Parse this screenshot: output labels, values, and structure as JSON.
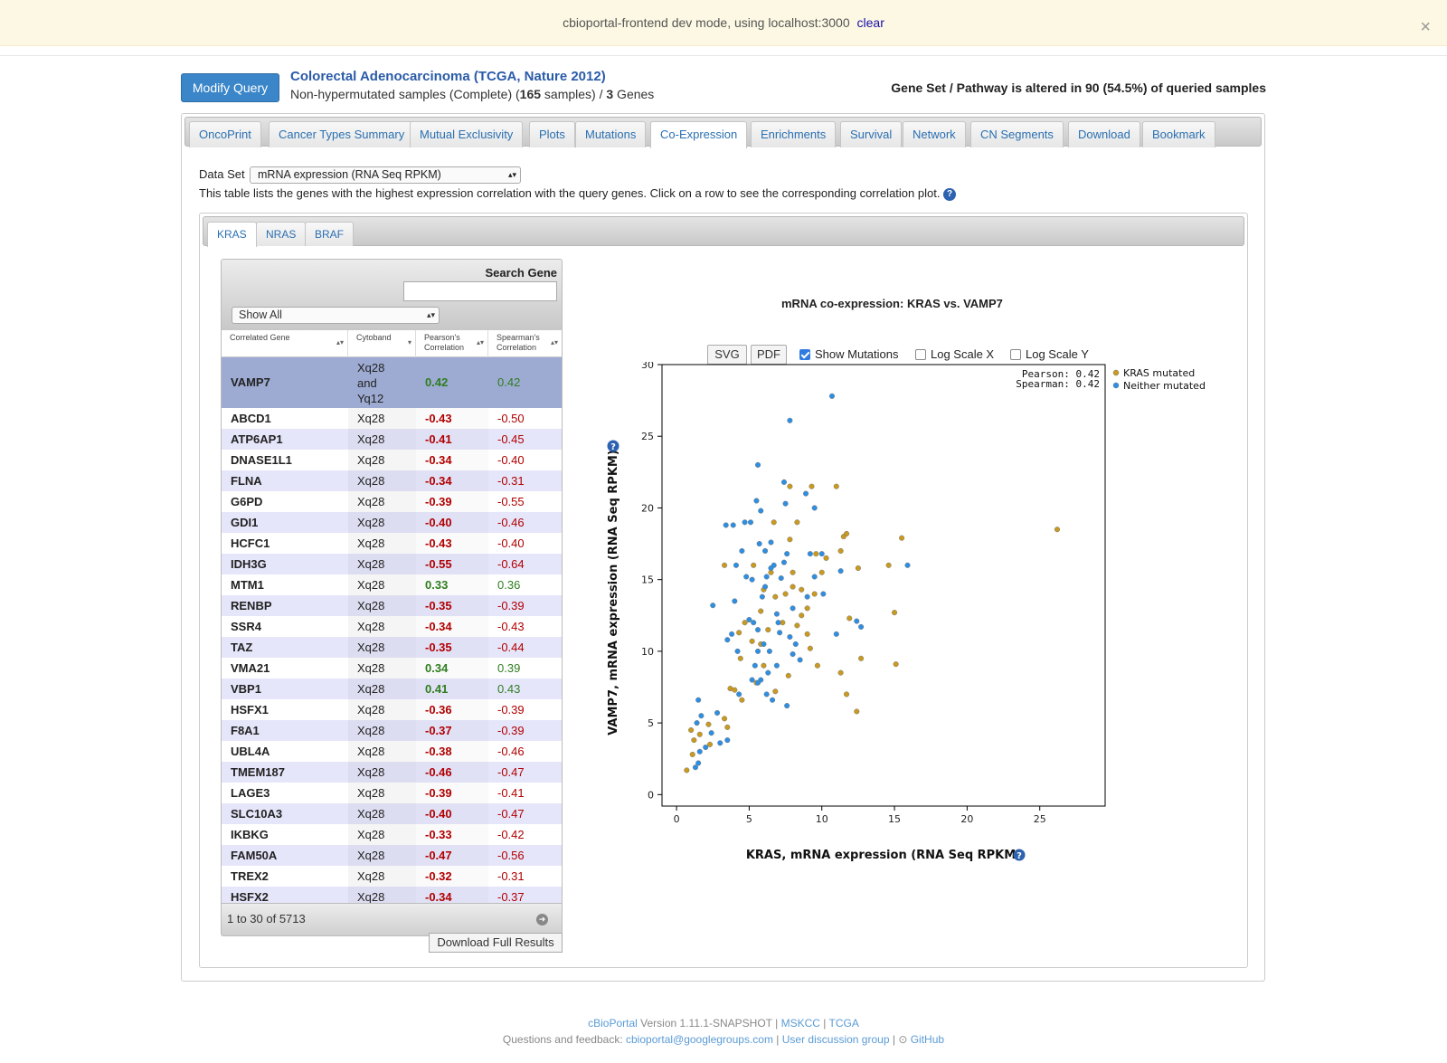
{
  "devbar": {
    "message": "cbioportal-frontend dev mode, using localhost:3000",
    "clear_label": "clear",
    "close": "×"
  },
  "header": {
    "modify_label": "Modify Query",
    "study_title": "Colorectal Adenocarcinoma (TCGA, Nature 2012)",
    "subtitle_pre": "Non-hypermutated samples (Complete) (",
    "samples_count": "165",
    "subtitle_mid": " samples) / ",
    "genes_count": "3",
    "subtitle_post": " Genes",
    "altered_text": "Gene Set / Pathway is altered in 90 (54.5%) of queried samples"
  },
  "tabs": [
    "OncoPrint",
    "Cancer Types Summary",
    "Mutual Exclusivity",
    "Plots",
    "Mutations",
    "Co-Expression",
    "Enrichments",
    "Survival",
    "Network",
    "CN Segments",
    "Download",
    "Bookmark"
  ],
  "active_tab": "Co-Expression",
  "dataset": {
    "label": "Data Set",
    "selected": "mRNA expression (RNA Seq RPKM)",
    "description": "This table lists the genes with the highest expression correlation with the query genes. Click on a row to see the corresponding correlation plot."
  },
  "gene_tabs": [
    "KRAS",
    "NRAS",
    "BRAF"
  ],
  "active_gene_tab": "KRAS",
  "table": {
    "search_label": "Search Gene",
    "search_value": "",
    "filter_selected": "Show All",
    "columns": [
      {
        "line1": "Correlated Gene",
        "line2": ""
      },
      {
        "line1": "Cytoband",
        "line2": ""
      },
      {
        "line1": "Pearson's",
        "line2": "Correlation"
      },
      {
        "line1": "Spearman's",
        "line2": "Correlation"
      }
    ],
    "selected_row": {
      "gene": "VAMP7",
      "cytoband": [
        "Xq28",
        "and",
        "Yq12"
      ],
      "pearson": "0.42",
      "spearman": "0.42"
    },
    "rows": [
      {
        "gene": "ABCD1",
        "cytoband": "Xq28",
        "pearson": "-0.43",
        "spearman": "-0.50"
      },
      {
        "gene": "ATP6AP1",
        "cytoband": "Xq28",
        "pearson": "-0.41",
        "spearman": "-0.45"
      },
      {
        "gene": "DNASE1L1",
        "cytoband": "Xq28",
        "pearson": "-0.34",
        "spearman": "-0.40"
      },
      {
        "gene": "FLNA",
        "cytoband": "Xq28",
        "pearson": "-0.34",
        "spearman": "-0.31"
      },
      {
        "gene": "G6PD",
        "cytoband": "Xq28",
        "pearson": "-0.39",
        "spearman": "-0.55"
      },
      {
        "gene": "GDI1",
        "cytoband": "Xq28",
        "pearson": "-0.40",
        "spearman": "-0.46"
      },
      {
        "gene": "HCFC1",
        "cytoband": "Xq28",
        "pearson": "-0.43",
        "spearman": "-0.40"
      },
      {
        "gene": "IDH3G",
        "cytoband": "Xq28",
        "pearson": "-0.55",
        "spearman": "-0.64"
      },
      {
        "gene": "MTM1",
        "cytoband": "Xq28",
        "pearson": "0.33",
        "spearman": "0.36"
      },
      {
        "gene": "RENBP",
        "cytoband": "Xq28",
        "pearson": "-0.35",
        "spearman": "-0.39"
      },
      {
        "gene": "SSR4",
        "cytoband": "Xq28",
        "pearson": "-0.34",
        "spearman": "-0.43"
      },
      {
        "gene": "TAZ",
        "cytoband": "Xq28",
        "pearson": "-0.35",
        "spearman": "-0.44"
      },
      {
        "gene": "VMA21",
        "cytoband": "Xq28",
        "pearson": "0.34",
        "spearman": "0.39"
      },
      {
        "gene": "VBP1",
        "cytoband": "Xq28",
        "pearson": "0.41",
        "spearman": "0.43"
      },
      {
        "gene": "HSFX1",
        "cytoband": "Xq28",
        "pearson": "-0.36",
        "spearman": "-0.39"
      },
      {
        "gene": "F8A1",
        "cytoband": "Xq28",
        "pearson": "-0.37",
        "spearman": "-0.39"
      },
      {
        "gene": "UBL4A",
        "cytoband": "Xq28",
        "pearson": "-0.38",
        "spearman": "-0.46"
      },
      {
        "gene": "TMEM187",
        "cytoband": "Xq28",
        "pearson": "-0.46",
        "spearman": "-0.47"
      },
      {
        "gene": "LAGE3",
        "cytoband": "Xq28",
        "pearson": "-0.39",
        "spearman": "-0.41"
      },
      {
        "gene": "SLC10A3",
        "cytoband": "Xq28",
        "pearson": "-0.40",
        "spearman": "-0.47"
      },
      {
        "gene": "IKBKG",
        "cytoband": "Xq28",
        "pearson": "-0.33",
        "spearman": "-0.42"
      },
      {
        "gene": "FAM50A",
        "cytoband": "Xq28",
        "pearson": "-0.47",
        "spearman": "-0.56"
      },
      {
        "gene": "TREX2",
        "cytoband": "Xq28",
        "pearson": "-0.32",
        "spearman": "-0.31"
      },
      {
        "gene": "HSFX2",
        "cytoband": "Xq28",
        "pearson": "-0.34",
        "spearman": "-0.37"
      }
    ],
    "pagination": "1 to 30 of 5713",
    "download_label": "Download Full Results"
  },
  "plot_controls": {
    "svg_label": "SVG",
    "pdf_label": "PDF",
    "show_mutations_label": "Show Mutations",
    "show_mutations": true,
    "log_x_label": "Log Scale X",
    "log_x": false,
    "log_y_label": "Log Scale Y",
    "log_y": false
  },
  "colors": {
    "mutated": "#c99a1e",
    "neither": "#2d8fe3",
    "negative": "#b10000",
    "positive": "#2f7d1f",
    "link": "#2a6fb0"
  },
  "chart_data": {
    "type": "scatter",
    "title": "mRNA co-expression: KRAS vs. VAMP7",
    "xlabel": "KRAS, mRNA expression (RNA Seq RPKM)",
    "ylabel": "VAMP7, mRNA expression (RNA Seq RPKM)",
    "xlim": [
      -1,
      29.5
    ],
    "ylim": [
      -0.8,
      30
    ],
    "xticks": [
      0,
      5,
      10,
      15,
      20,
      25
    ],
    "yticks": [
      0,
      5,
      10,
      15,
      20,
      25,
      30
    ],
    "grid": false,
    "legend_position": "right",
    "stats": [
      "Pearson: 0.42",
      "Spearman: 0.42"
    ],
    "series": [
      {
        "name": "KRAS mutated",
        "color": "#c99a1e",
        "points": [
          [
            0.7,
            1.7
          ],
          [
            1.1,
            2.8
          ],
          [
            1.2,
            3.8
          ],
          [
            1.0,
            4.5
          ],
          [
            1.6,
            4.2
          ],
          [
            2.2,
            4.9
          ],
          [
            2.3,
            3.5
          ],
          [
            3.3,
            5.3
          ],
          [
            3.5,
            4.7
          ],
          [
            3.3,
            16.0
          ],
          [
            3.7,
            7.4
          ],
          [
            4.0,
            7.3
          ],
          [
            4.5,
            6.6
          ],
          [
            4.3,
            11.3
          ],
          [
            4.4,
            9.5
          ],
          [
            4.7,
            12.0
          ],
          [
            5.2,
            10.7
          ],
          [
            5.3,
            16.0
          ],
          [
            5.8,
            10.5
          ],
          [
            5.8,
            12.8
          ],
          [
            6.0,
            14.3
          ],
          [
            6.3,
            11.5
          ],
          [
            6.7,
            19.0
          ],
          [
            6.5,
            15.5
          ],
          [
            6.8,
            13.8
          ],
          [
            7.5,
            14.0
          ],
          [
            7.3,
            12.0
          ],
          [
            7.8,
            21.5
          ],
          [
            7.8,
            17.8
          ],
          [
            8.3,
            19.0
          ],
          [
            8.0,
            15.5
          ],
          [
            8.0,
            14.5
          ],
          [
            8.3,
            11.8
          ],
          [
            8.6,
            12.5
          ],
          [
            9.0,
            13.0
          ],
          [
            9.0,
            11.2
          ],
          [
            9.3,
            21.5
          ],
          [
            9.2,
            10.2
          ],
          [
            9.6,
            16.8
          ],
          [
            9.5,
            14.0
          ],
          [
            9.7,
            9.0
          ],
          [
            10.0,
            15.5
          ],
          [
            10.3,
            16.5
          ],
          [
            11.0,
            21.5
          ],
          [
            11.3,
            17.0
          ],
          [
            11.5,
            18.0
          ],
          [
            11.7,
            18.2
          ],
          [
            11.9,
            12.3
          ],
          [
            11.3,
            8.5
          ],
          [
            11.7,
            7.0
          ],
          [
            12.5,
            15.8
          ],
          [
            12.4,
            5.8
          ],
          [
            12.7,
            9.5
          ],
          [
            14.6,
            16.0
          ],
          [
            15.0,
            12.7
          ],
          [
            15.1,
            9.1
          ],
          [
            15.5,
            17.9
          ],
          [
            26.2,
            18.5
          ],
          [
            6.0,
            9.0
          ],
          [
            5.5,
            7.8
          ],
          [
            6.8,
            7.2
          ],
          [
            7.7,
            8.3
          ],
          [
            8.6,
            14.3
          ]
        ]
      },
      {
        "name": "Neither mutated",
        "color": "#2d8fe3",
        "points": [
          [
            1.3,
            1.9
          ],
          [
            1.5,
            2.2
          ],
          [
            1.6,
            3.0
          ],
          [
            1.4,
            5.0
          ],
          [
            1.7,
            5.5
          ],
          [
            2.0,
            3.3
          ],
          [
            2.4,
            4.3
          ],
          [
            2.8,
            5.7
          ],
          [
            3.0,
            3.6
          ],
          [
            3.5,
            3.8
          ],
          [
            1.5,
            6.6
          ],
          [
            2.5,
            13.2
          ],
          [
            3.5,
            10.8
          ],
          [
            3.8,
            11.2
          ],
          [
            4.0,
            13.5
          ],
          [
            3.9,
            18.8
          ],
          [
            4.1,
            16.0
          ],
          [
            4.7,
            19.0
          ],
          [
            5.1,
            19.0
          ],
          [
            5.6,
            23.0
          ],
          [
            5.5,
            20.5
          ],
          [
            5.8,
            19.8
          ],
          [
            5.7,
            17.5
          ],
          [
            6.1,
            17.0
          ],
          [
            6.5,
            17.6
          ],
          [
            4.8,
            15.2
          ],
          [
            5.2,
            15.0
          ],
          [
            5.0,
            12.2
          ],
          [
            5.3,
            12.0
          ],
          [
            5.6,
            11.5
          ],
          [
            5.6,
            10.0
          ],
          [
            5.4,
            9.0
          ],
          [
            5.2,
            8.0
          ],
          [
            5.6,
            7.8
          ],
          [
            5.8,
            8.0
          ],
          [
            6.3,
            8.5
          ],
          [
            6.1,
            14.5
          ],
          [
            6.2,
            15.2
          ],
          [
            6.5,
            15.8
          ],
          [
            6.7,
            16.0
          ],
          [
            6.9,
            12.6
          ],
          [
            7.0,
            12.0
          ],
          [
            7.2,
            15.1
          ],
          [
            7.4,
            16.2
          ],
          [
            7.6,
            16.8
          ],
          [
            7.4,
            21.8
          ],
          [
            7.5,
            20.3
          ],
          [
            7.8,
            26.1
          ],
          [
            8.0,
            13.0
          ],
          [
            7.8,
            11.0
          ],
          [
            8.0,
            9.8
          ],
          [
            8.2,
            10.5
          ],
          [
            6.2,
            7.0
          ],
          [
            7.6,
            6.2
          ],
          [
            6.6,
            6.6
          ],
          [
            7.1,
            11.3
          ],
          [
            6.0,
            10.5
          ],
          [
            6.4,
            10.0
          ],
          [
            8.9,
            21.0
          ],
          [
            9.5,
            20.0
          ],
          [
            9.5,
            15.2
          ],
          [
            9.2,
            16.8
          ],
          [
            10.0,
            16.8
          ],
          [
            10.1,
            14.0
          ],
          [
            10.7,
            27.8
          ],
          [
            11.0,
            11.2
          ],
          [
            11.3,
            15.6
          ],
          [
            12.4,
            12.1
          ],
          [
            12.7,
            11.7
          ],
          [
            15.9,
            16.0
          ],
          [
            3.4,
            18.8
          ],
          [
            4.5,
            17.0
          ],
          [
            6.9,
            9.0
          ],
          [
            4.2,
            10.0
          ],
          [
            4.3,
            7.0
          ],
          [
            8.5,
            9.4
          ],
          [
            9.0,
            13.8
          ],
          [
            5.9,
            13.8
          ]
        ]
      }
    ]
  },
  "footer": {
    "brand": "cBioPortal",
    "version": " Version 1.11.1-SNAPSHOT ",
    "sep": "|",
    "mskcc": "MSKCC",
    "tcga": "TCGA",
    "questions": "Questions and feedback: ",
    "email": "cbioportal@googlegroups.com",
    "user_group": "User discussion group",
    "github": "GitHub"
  }
}
